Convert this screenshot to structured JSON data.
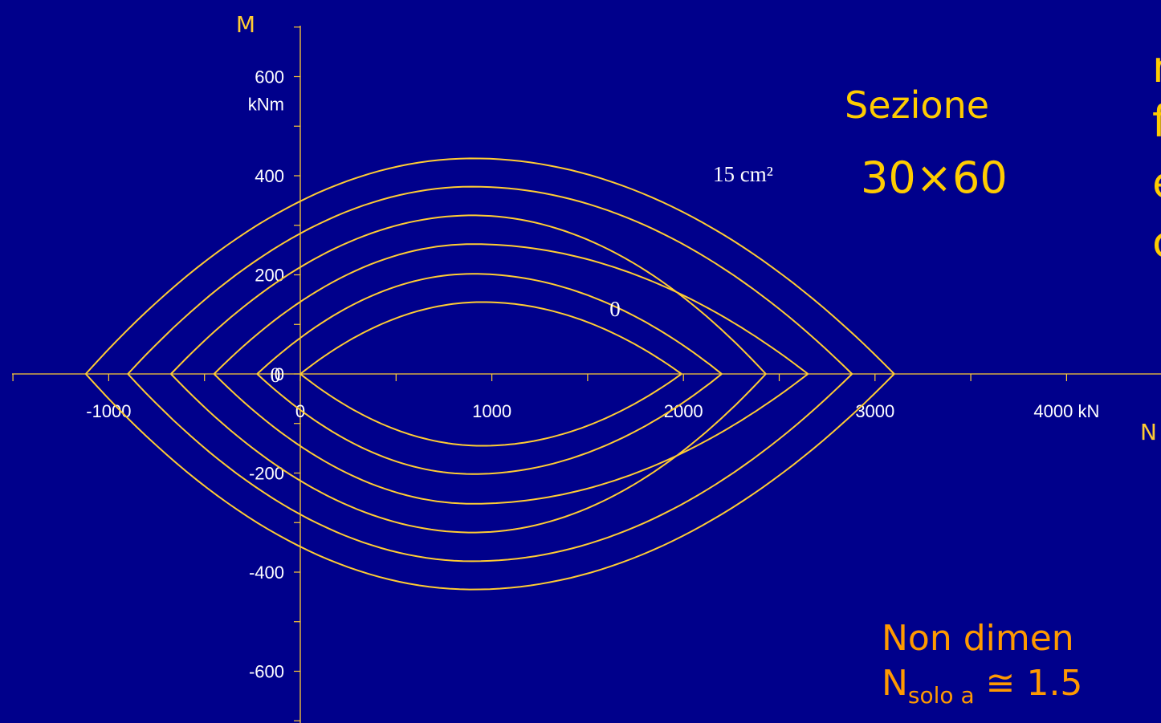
{
  "chart_data": {
    "type": "line",
    "xlabel": "N",
    "ylabel": "M",
    "x_ticks": [
      "-1000",
      "0",
      "1000",
      "2000",
      "3000",
      "4000 kN"
    ],
    "y_ticks": [
      "600",
      "400",
      "200",
      "0",
      "-200",
      "-400",
      "-600"
    ],
    "y_unit": "kNm",
    "xlim": [
      -1500,
      4500
    ],
    "ylim": [
      -700,
      700
    ],
    "annotations": {
      "area_label": "15 cm²",
      "curve_zero_label": "0"
    },
    "curve_color": "#ffcc33",
    "series": [
      {
        "left": -1120,
        "right": 3100,
        "peak_n": 900,
        "peak_m": 435
      },
      {
        "left": -900,
        "right": 2880,
        "peak_n": 900,
        "peak_m": 378
      },
      {
        "left": -675,
        "right": 2430,
        "peak_n": 900,
        "peak_m": 320
      },
      {
        "left": -450,
        "right": 2650,
        "peak_n": 900,
        "peak_m": 262
      },
      {
        "left": -225,
        "right": 2200,
        "peak_n": 900,
        "peak_m": 202
      },
      {
        "left": 0,
        "right": 1990,
        "peak_n": 950,
        "peak_m": 145
      }
    ]
  },
  "text": {
    "section_title": "Sezione",
    "section_dims": "30×60",
    "right_1": "n",
    "right_2": "f",
    "right_3": "e",
    "right_4": "c",
    "note_line1": "Non dimen",
    "note_line2_main": "N",
    "note_line2_sub": "solo a",
    "note_line2_rest": " ≅ 1.5"
  },
  "colors": {
    "background": "#00008b",
    "text": "#ffcc00",
    "note": "#ff9900",
    "axis": "#ffcc33"
  }
}
